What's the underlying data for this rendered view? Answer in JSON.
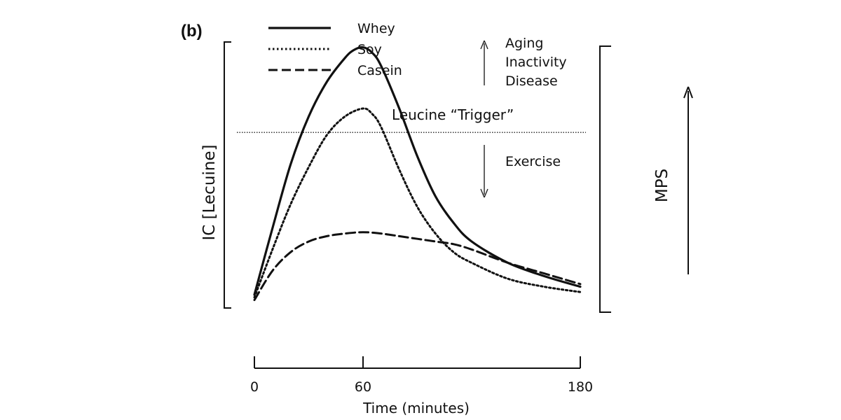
{
  "chart_data": {
    "type": "line",
    "panel_label": "(b)",
    "xlabel": "Time (minutes)",
    "ylabel": "IC [Lecuine]",
    "right_axis_label": "MPS",
    "xlim": [
      0,
      180
    ],
    "ylim": [
      0,
      100
    ],
    "x_ticks": [
      0,
      60,
      180
    ],
    "threshold": {
      "label": "Leucine “Trigger”",
      "value": 66
    },
    "annotations": {
      "up": [
        "Aging",
        "Inactivity",
        "Disease"
      ],
      "down": [
        "Exercise"
      ]
    },
    "series": [
      {
        "name": "Whey",
        "style": "solid",
        "x": [
          0,
          10,
          20,
          30,
          40,
          50,
          55,
          60,
          65,
          70,
          80,
          90,
          100,
          110,
          120,
          140,
          160,
          180
        ],
        "y": [
          5,
          30,
          54,
          72,
          85,
          94,
          97,
          98,
          96,
          91,
          75,
          57,
          42,
          32,
          25,
          17,
          12,
          8
        ]
      },
      {
        "name": "Soy",
        "style": "dotted",
        "x": [
          0,
          10,
          20,
          30,
          40,
          50,
          60,
          65,
          70,
          80,
          90,
          100,
          110,
          120,
          140,
          160,
          180
        ],
        "y": [
          4,
          22,
          39,
          53,
          65,
          72,
          75,
          73,
          68,
          52,
          38,
          28,
          21,
          17,
          11,
          8,
          6
        ]
      },
      {
        "name": "Casein",
        "style": "dashed",
        "x": [
          0,
          10,
          20,
          30,
          40,
          50,
          60,
          70,
          80,
          90,
          100,
          110,
          120,
          140,
          160,
          180
        ],
        "y": [
          3,
          14,
          21,
          25,
          27,
          28,
          28.5,
          28,
          27,
          26,
          25,
          24,
          22,
          17,
          13,
          9
        ]
      }
    ]
  }
}
